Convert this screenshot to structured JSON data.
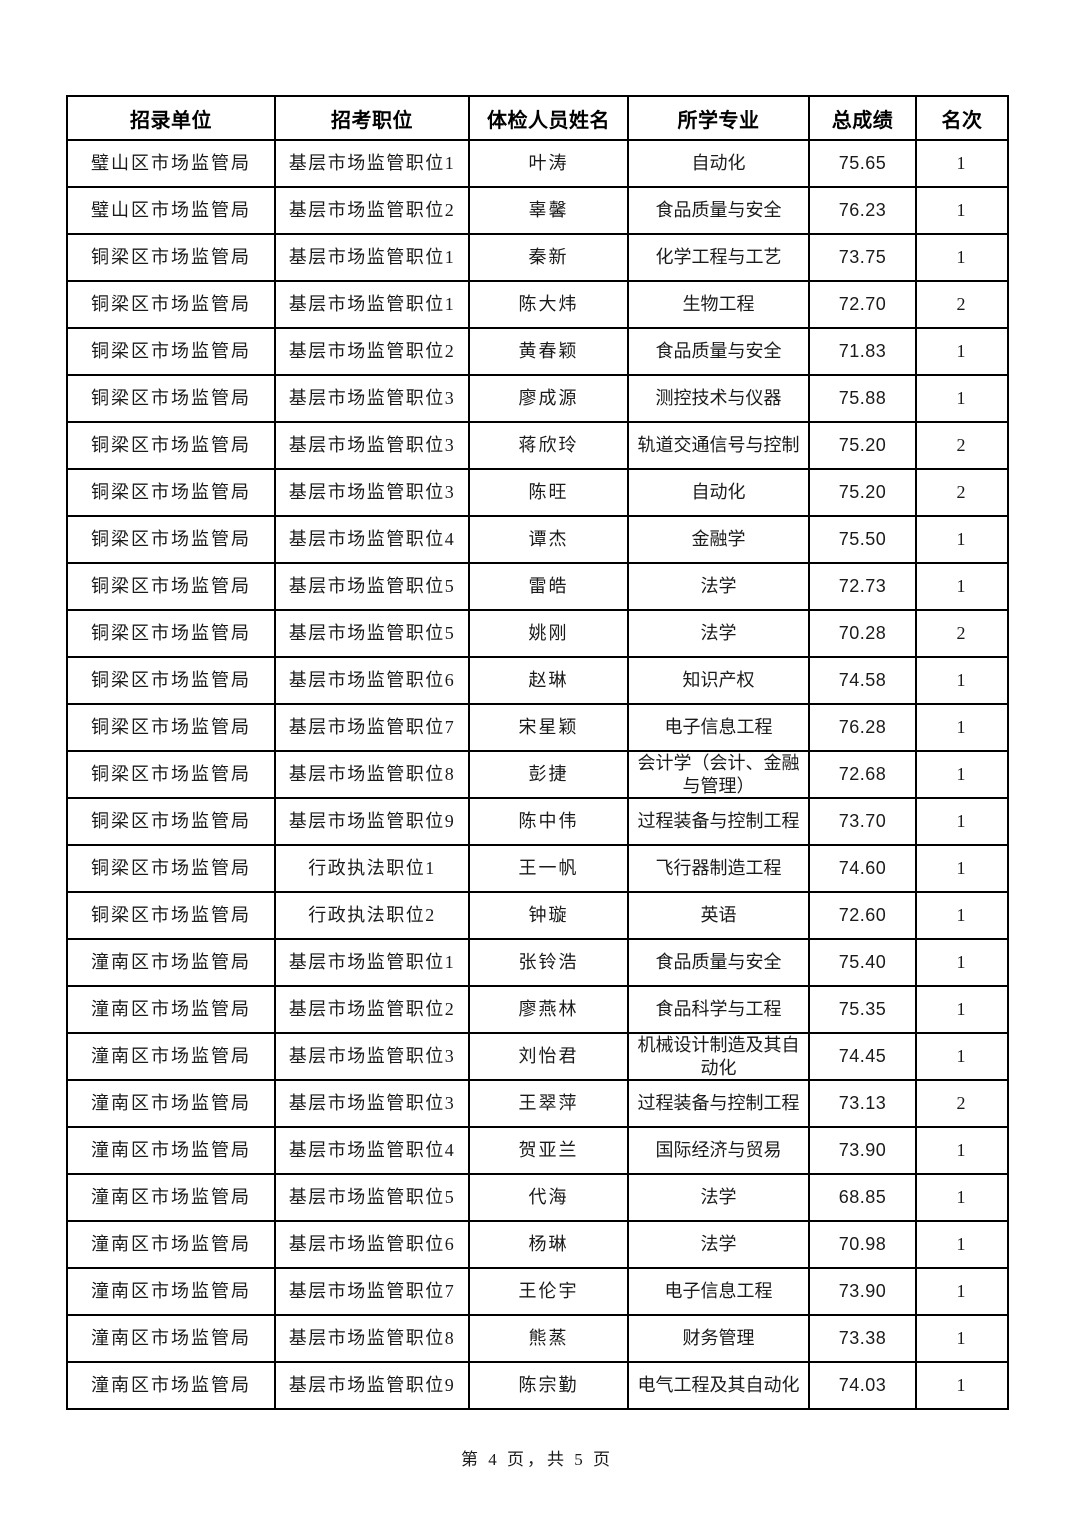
{
  "table": {
    "headers": [
      "招录单位",
      "招考职位",
      "体检人员姓名",
      "所学专业",
      "总成绩",
      "名次"
    ],
    "rows": [
      [
        "璧山区市场监管局",
        "基层市场监管职位1",
        "叶涛",
        "自动化",
        "75.65",
        "1"
      ],
      [
        "璧山区市场监管局",
        "基层市场监管职位2",
        "辜馨",
        "食品质量与安全",
        "76.23",
        "1"
      ],
      [
        "铜梁区市场监管局",
        "基层市场监管职位1",
        "秦新",
        "化学工程与工艺",
        "73.75",
        "1"
      ],
      [
        "铜梁区市场监管局",
        "基层市场监管职位1",
        "陈大炜",
        "生物工程",
        "72.70",
        "2"
      ],
      [
        "铜梁区市场监管局",
        "基层市场监管职位2",
        "黄春颖",
        "食品质量与安全",
        "71.83",
        "1"
      ],
      [
        "铜梁区市场监管局",
        "基层市场监管职位3",
        "廖成源",
        "测控技术与仪器",
        "75.88",
        "1"
      ],
      [
        "铜梁区市场监管局",
        "基层市场监管职位3",
        "蒋欣玲",
        "轨道交通信号与控制",
        "75.20",
        "2"
      ],
      [
        "铜梁区市场监管局",
        "基层市场监管职位3",
        "陈旺",
        "自动化",
        "75.20",
        "2"
      ],
      [
        "铜梁区市场监管局",
        "基层市场监管职位4",
        "谭杰",
        "金融学",
        "75.50",
        "1"
      ],
      [
        "铜梁区市场监管局",
        "基层市场监管职位5",
        "雷皓",
        "法学",
        "72.73",
        "1"
      ],
      [
        "铜梁区市场监管局",
        "基层市场监管职位5",
        "姚刚",
        "法学",
        "70.28",
        "2"
      ],
      [
        "铜梁区市场监管局",
        "基层市场监管职位6",
        "赵琳",
        "知识产权",
        "74.58",
        "1"
      ],
      [
        "铜梁区市场监管局",
        "基层市场监管职位7",
        "宋星颖",
        "电子信息工程",
        "76.28",
        "1"
      ],
      [
        "铜梁区市场监管局",
        "基层市场监管职位8",
        "彭捷",
        "会计学（会计、金融与管理）",
        "72.68",
        "1"
      ],
      [
        "铜梁区市场监管局",
        "基层市场监管职位9",
        "陈中伟",
        "过程装备与控制工程",
        "73.70",
        "1"
      ],
      [
        "铜梁区市场监管局",
        "行政执法职位1",
        "王一帆",
        "飞行器制造工程",
        "74.60",
        "1"
      ],
      [
        "铜梁区市场监管局",
        "行政执法职位2",
        "钟璇",
        "英语",
        "72.60",
        "1"
      ],
      [
        "潼南区市场监管局",
        "基层市场监管职位1",
        "张铃浩",
        "食品质量与安全",
        "75.40",
        "1"
      ],
      [
        "潼南区市场监管局",
        "基层市场监管职位2",
        "廖燕林",
        "食品科学与工程",
        "75.35",
        "1"
      ],
      [
        "潼南区市场监管局",
        "基层市场监管职位3",
        "刘怡君",
        "机械设计制造及其自动化",
        "74.45",
        "1"
      ],
      [
        "潼南区市场监管局",
        "基层市场监管职位3",
        "王翠萍",
        "过程装备与控制工程",
        "73.13",
        "2"
      ],
      [
        "潼南区市场监管局",
        "基层市场监管职位4",
        "贺亚兰",
        "国际经济与贸易",
        "73.90",
        "1"
      ],
      [
        "潼南区市场监管局",
        "基层市场监管职位5",
        "代海",
        "法学",
        "68.85",
        "1"
      ],
      [
        "潼南区市场监管局",
        "基层市场监管职位6",
        "杨琳",
        "法学",
        "70.98",
        "1"
      ],
      [
        "潼南区市场监管局",
        "基层市场监管职位7",
        "王伦宇",
        "电子信息工程",
        "73.90",
        "1"
      ],
      [
        "潼南区市场监管局",
        "基层市场监管职位8",
        "熊蒸",
        "财务管理",
        "73.38",
        "1"
      ],
      [
        "潼南区市场监管局",
        "基层市场监管职位9",
        "陈宗勤",
        "电气工程及其自动化",
        "74.03",
        "1"
      ]
    ]
  },
  "footer": {
    "page_info": "第 4 页，共 5 页"
  }
}
